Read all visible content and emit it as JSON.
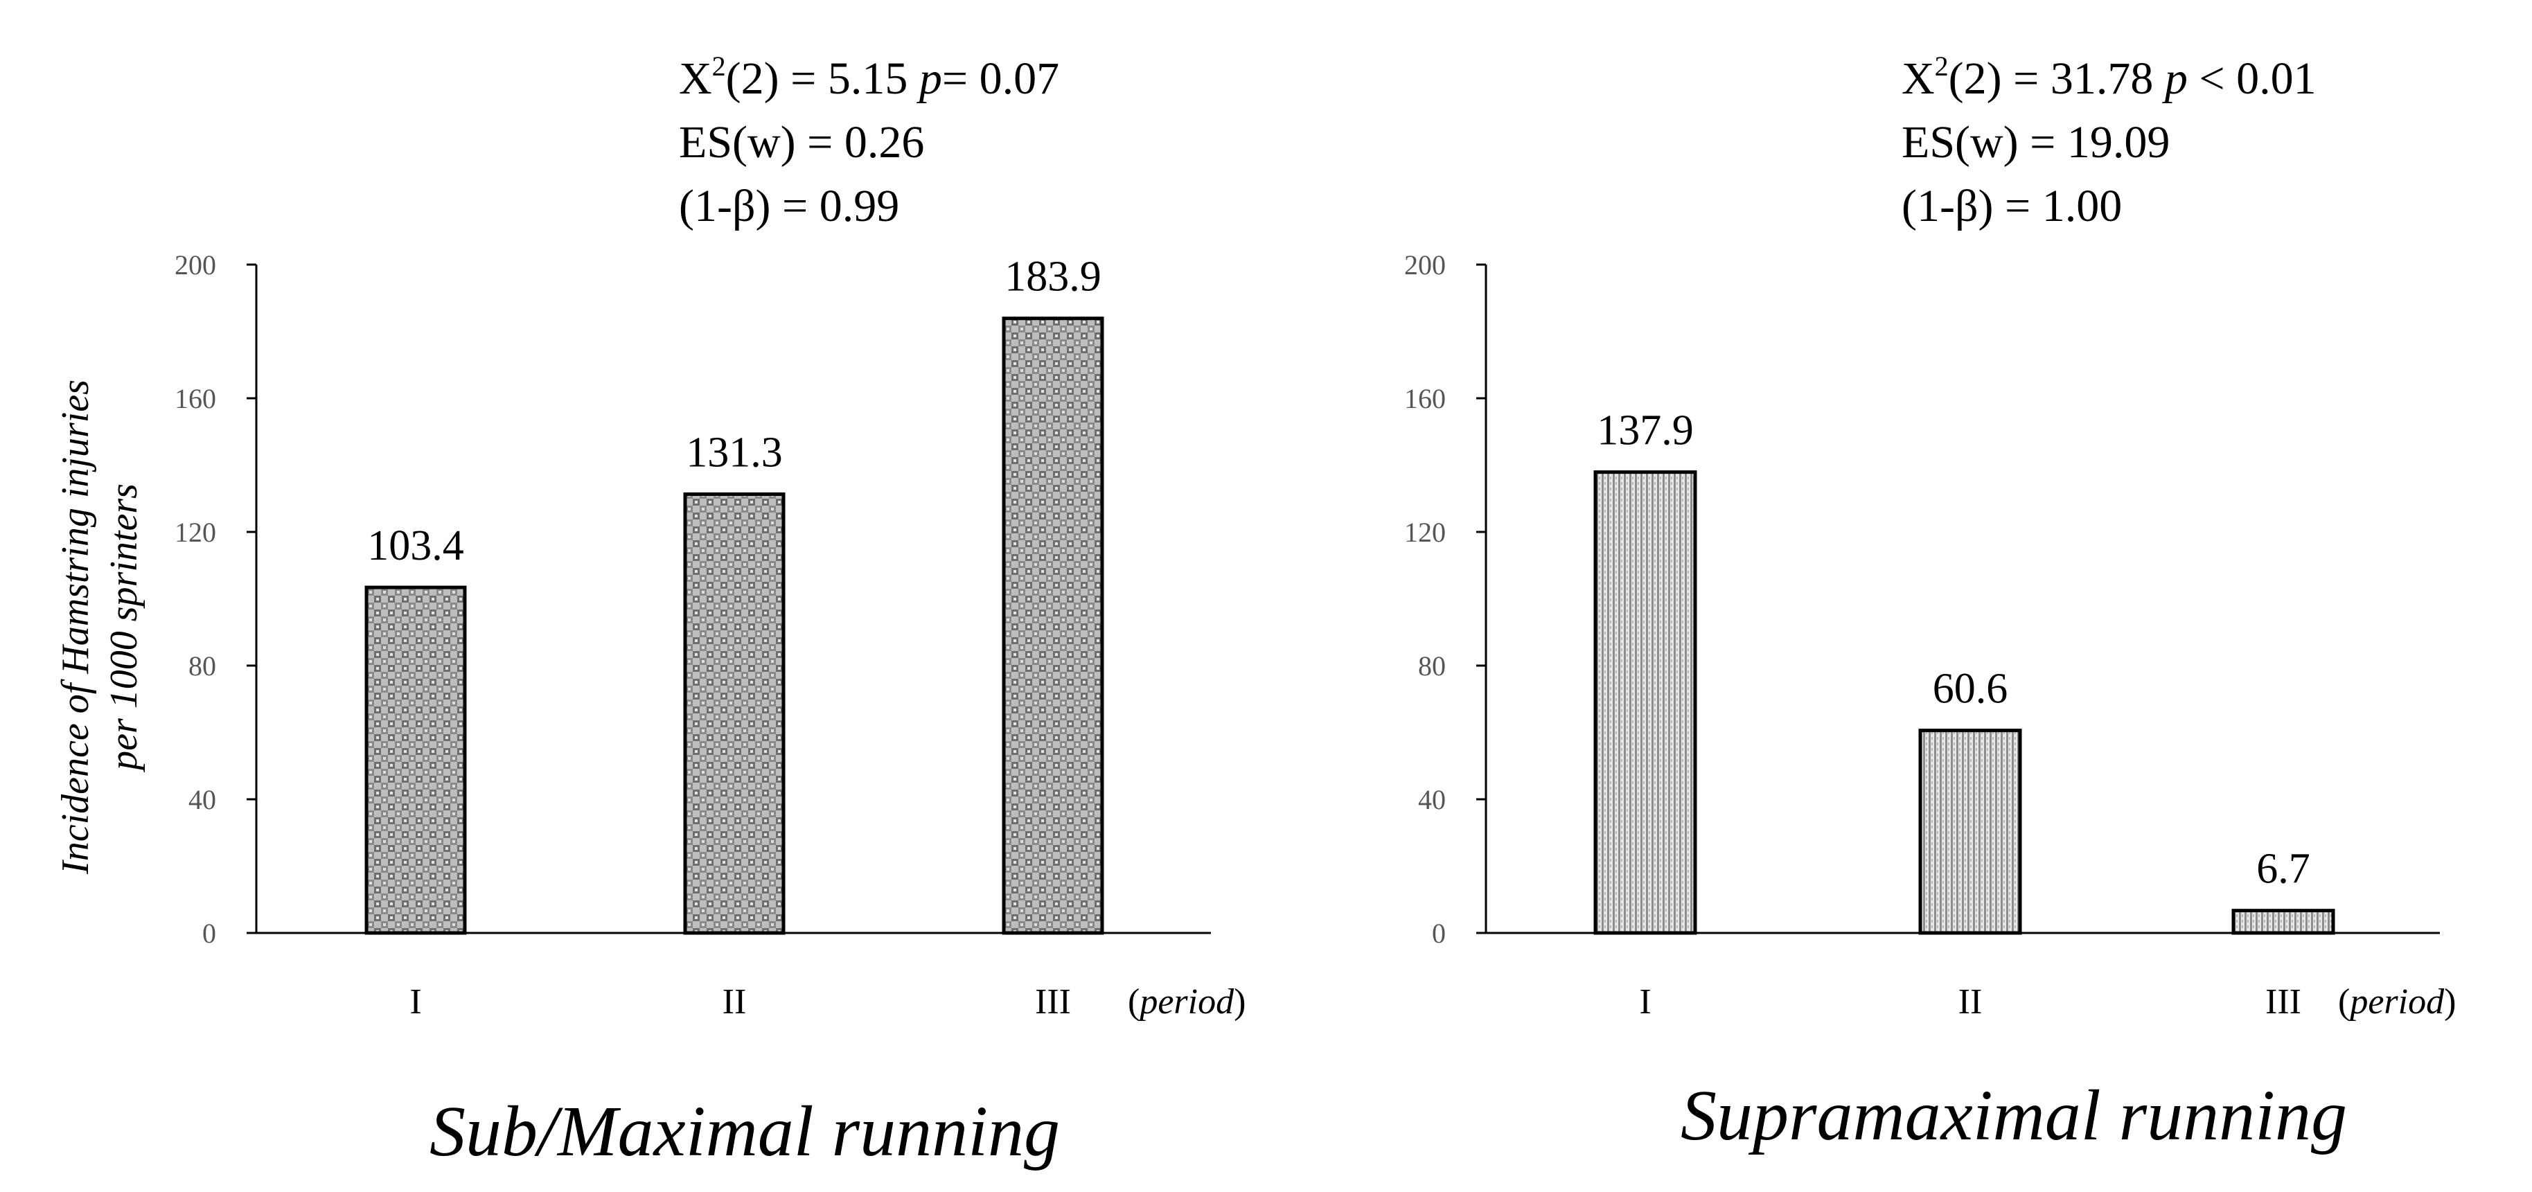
{
  "y_axis_label_lines": [
    "Incidence of Hamstring injuries",
    "per 1000 sprinters"
  ],
  "chart_data": [
    {
      "type": "bar",
      "title": "Sub/Maximal running",
      "categories": [
        "I",
        "II",
        "III"
      ],
      "values": [
        103.4,
        131.3,
        183.9
      ],
      "value_labels": [
        "103.4",
        "131.3",
        "183.9"
      ],
      "xlabel": "(period)",
      "xlabel_text": "period",
      "ylabel": "Incidence of Hamstring injuries per 1000 sprinters",
      "ylim": [
        0,
        200
      ],
      "yticks": [
        0,
        40,
        80,
        120,
        160,
        200
      ],
      "ytick_labels": [
        "0",
        "40",
        "80",
        "120",
        "160",
        "200"
      ],
      "bar_pattern": "checkered",
      "grid": false,
      "stats": {
        "chi": {
          "pre": "X",
          "sup": "2",
          "post": "(2) = 5.15 ",
          "p": "p",
          "tail": "=  0.07"
        },
        "es": "ES(w) = 0.26",
        "power": "(1-β) = 0.99"
      }
    },
    {
      "type": "bar",
      "title": "Supramaximal running",
      "categories": [
        "I",
        "II",
        "III"
      ],
      "values": [
        137.9,
        60.6,
        6.7
      ],
      "value_labels": [
        "137.9",
        "60.6",
        "6.7"
      ],
      "xlabel": "(period)",
      "xlabel_text": "period",
      "ylabel": "",
      "ylim": [
        0,
        200
      ],
      "yticks": [
        0,
        40,
        80,
        120,
        160,
        200
      ],
      "ytick_labels": [
        "0",
        "40",
        "80",
        "120",
        "160",
        "200"
      ],
      "bar_pattern": "vertical-lines",
      "grid": false,
      "stats": {
        "chi": {
          "pre": "X",
          "sup": "2",
          "post": "(2) = 31.78 ",
          "p": "p",
          "tail": " < 0.01"
        },
        "es": "ES(w) = 19.09",
        "power": "(1-β) = 1.00"
      }
    }
  ]
}
